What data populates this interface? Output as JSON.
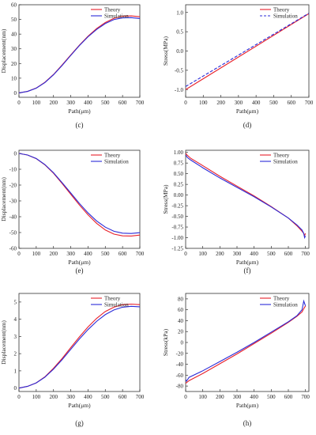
{
  "chart_data": [
    {
      "panel": "c",
      "caption": "(c)",
      "type": "line",
      "xlabel": "Path(μm)",
      "ylabel": "Displacement(nm)",
      "xlim": [
        0,
        700
      ],
      "ylim": [
        -3,
        60
      ],
      "xticks": [
        0,
        100,
        200,
        300,
        400,
        500,
        600,
        700
      ],
      "yticks": [
        0,
        10,
        20,
        30,
        40,
        50,
        60
      ],
      "legend_position": "top-right",
      "grid": false,
      "series": [
        {
          "name": "Theory",
          "color": "#e8202a",
          "dash": "solid",
          "x": [
            0,
            50,
            100,
            150,
            200,
            250,
            300,
            350,
            400,
            450,
            500,
            550,
            600,
            650,
            700
          ],
          "y": [
            0,
            1,
            3.3,
            7.2,
            12.5,
            19,
            25.8,
            32.5,
            38.6,
            43.8,
            47.9,
            50.8,
            52.2,
            52.4,
            51.8
          ]
        },
        {
          "name": "Simulation",
          "color": "#2b2bd8",
          "dash": "solid",
          "x": [
            0,
            50,
            100,
            150,
            200,
            250,
            300,
            350,
            400,
            450,
            500,
            550,
            600,
            650,
            700
          ],
          "y": [
            0,
            1,
            3.2,
            7,
            12.3,
            18.7,
            25.5,
            32.2,
            38.2,
            43.2,
            47.2,
            49.9,
            51.1,
            51.2,
            50.6
          ]
        }
      ]
    },
    {
      "panel": "d",
      "caption": "(d)",
      "type": "line",
      "xlabel": "Path(μm)",
      "ylabel": "Stress(MPa)",
      "xlim": [
        0,
        700
      ],
      "ylim": [
        -1.2,
        1.2
      ],
      "xticks": [
        0,
        100,
        200,
        300,
        400,
        500,
        600,
        700
      ],
      "yticks": [
        -1.0,
        -0.5,
        0.0,
        0.5,
        1.0
      ],
      "ytick_labels": [
        "-1.0",
        "-0.5",
        "0.0",
        "0.5",
        "1.0"
      ],
      "legend_position": "top-right",
      "grid": false,
      "series": [
        {
          "name": "Theory",
          "color": "#e8202a",
          "dash": "solid",
          "x": [
            0,
            700
          ],
          "y": [
            -1.0,
            0.97
          ]
        },
        {
          "name": "Simulation",
          "color": "#2b2bd8",
          "dash": "dashed",
          "x": [
            0,
            700
          ],
          "y": [
            -0.92,
            0.98
          ]
        }
      ]
    },
    {
      "panel": "e",
      "caption": "(e)",
      "type": "line",
      "xlabel": "Path(μm)",
      "ylabel": "Displacement(nm)",
      "xlim": [
        0,
        700
      ],
      "ylim": [
        -60,
        2
      ],
      "xticks": [
        0,
        100,
        200,
        300,
        400,
        500,
        600,
        700
      ],
      "yticks": [
        0,
        -10,
        -20,
        -30,
        -40,
        -50,
        -60
      ],
      "legend_position": "top-right",
      "grid": false,
      "series": [
        {
          "name": "Theory",
          "color": "#e8202a",
          "dash": "solid",
          "x": [
            0,
            50,
            100,
            150,
            200,
            250,
            300,
            350,
            400,
            450,
            500,
            550,
            600,
            650,
            700
          ],
          "y": [
            0,
            -1,
            -3.3,
            -7.2,
            -12.5,
            -19,
            -25.8,
            -32.6,
            -38.8,
            -44.2,
            -48.4,
            -51,
            -52.1,
            -52.2,
            -51.6
          ]
        },
        {
          "name": "Simulation",
          "color": "#2b2bd8",
          "dash": "solid",
          "x": [
            0,
            50,
            100,
            150,
            200,
            250,
            300,
            350,
            400,
            450,
            500,
            550,
            600,
            650,
            700
          ],
          "y": [
            0,
            -1,
            -3.2,
            -7,
            -12.2,
            -18.5,
            -25,
            -31.6,
            -37.6,
            -42.7,
            -46.6,
            -49.2,
            -50.4,
            -50.6,
            -50.1
          ]
        }
      ]
    },
    {
      "panel": "f",
      "caption": "(f)",
      "type": "line",
      "xlabel": "Path(μm)",
      "ylabel": "Stress(MPa)",
      "xlim": [
        0,
        720
      ],
      "ylim": [
        -1.25,
        1.05
      ],
      "xticks": [
        0,
        100,
        200,
        300,
        400,
        500,
        600,
        700
      ],
      "yticks": [
        1.0,
        0.75,
        0.5,
        0.25,
        0.0,
        -0.25,
        -0.5,
        -0.75,
        -1.0,
        -1.25
      ],
      "ytick_labels": [
        "1.00",
        "0.75",
        "0.50",
        "0.25",
        "0.00",
        "-0.25",
        "-0.50",
        "-0.75",
        "-1.00",
        "-1.25"
      ],
      "legend_position": "top-right",
      "grid": false,
      "series": [
        {
          "name": "Theory",
          "color": "#e8202a",
          "dash": "solid",
          "x": [
            0,
            10,
            30,
            100,
            200,
            300,
            400,
            500,
            600,
            650,
            680,
            690,
            695,
            700
          ],
          "y": [
            0.98,
            0.93,
            0.86,
            0.69,
            0.44,
            0.21,
            -0.02,
            -0.27,
            -0.54,
            -0.72,
            -0.85,
            -0.9,
            -0.95,
            -0.9
          ]
        },
        {
          "name": "Simulation",
          "color": "#2b2bd8",
          "dash": "solid",
          "x": [
            0,
            10,
            30,
            100,
            200,
            300,
            400,
            500,
            600,
            650,
            680,
            690,
            695,
            700
          ],
          "y": [
            0.94,
            0.88,
            0.82,
            0.64,
            0.4,
            0.18,
            -0.04,
            -0.28,
            -0.54,
            -0.7,
            -0.82,
            -0.9,
            -1.0,
            -0.96
          ]
        }
      ]
    },
    {
      "panel": "g",
      "caption": "(g)",
      "type": "line",
      "xlabel": "Path(μm)",
      "ylabel": "Displacement(nm)",
      "xlim": [
        0,
        700
      ],
      "ylim": [
        -0.2,
        5.5
      ],
      "xticks": [
        0,
        100,
        200,
        300,
        400,
        500,
        600,
        700
      ],
      "yticks": [
        0,
        1,
        2,
        3,
        4,
        5
      ],
      "legend_position": "top-right",
      "grid": false,
      "series": [
        {
          "name": "Theory",
          "color": "#e8202a",
          "dash": "solid",
          "x": [
            0,
            50,
            100,
            150,
            200,
            250,
            300,
            350,
            400,
            450,
            500,
            550,
            600,
            650,
            700
          ],
          "y": [
            0,
            0.1,
            0.3,
            0.65,
            1.15,
            1.72,
            2.35,
            2.97,
            3.55,
            4.05,
            4.45,
            4.7,
            4.85,
            4.88,
            4.85
          ]
        },
        {
          "name": "Simulation",
          "color": "#2b2bd8",
          "dash": "solid",
          "x": [
            0,
            50,
            100,
            150,
            200,
            250,
            300,
            350,
            400,
            450,
            500,
            550,
            600,
            650,
            700
          ],
          "y": [
            0,
            0.1,
            0.3,
            0.63,
            1.1,
            1.65,
            2.25,
            2.85,
            3.4,
            3.88,
            4.27,
            4.54,
            4.7,
            4.75,
            4.72
          ]
        }
      ]
    },
    {
      "panel": "h",
      "caption": "(h)",
      "type": "line",
      "xlabel": "Path(μm)",
      "ylabel": "Stress(kPa)",
      "xlim": [
        0,
        720
      ],
      "ylim": [
        -90,
        90
      ],
      "xticks": [
        0,
        100,
        200,
        300,
        400,
        500,
        600,
        700
      ],
      "yticks": [
        80,
        60,
        40,
        20,
        0,
        -20,
        -40,
        -60,
        -80
      ],
      "legend_position": "top-right",
      "grid": false,
      "series": [
        {
          "name": "Theory",
          "color": "#e8202a",
          "dash": "solid",
          "x": [
            0,
            20,
            100,
            200,
            300,
            400,
            500,
            600,
            650,
            680,
            690,
            700
          ],
          "y": [
            -75,
            -70,
            -57,
            -39,
            -21,
            -2,
            17,
            37,
            48,
            56,
            62,
            67
          ]
        },
        {
          "name": "Simulation",
          "color": "#2b2bd8",
          "dash": "solid",
          "x": [
            0,
            5,
            20,
            100,
            200,
            300,
            400,
            500,
            600,
            650,
            680,
            690,
            700
          ],
          "y": [
            -68,
            -71,
            -64,
            -52,
            -35,
            -18,
            0,
            19,
            38,
            49,
            60,
            76,
            67
          ]
        }
      ]
    }
  ]
}
